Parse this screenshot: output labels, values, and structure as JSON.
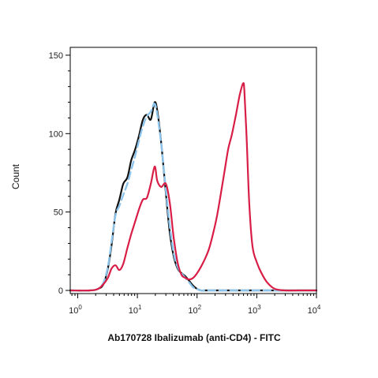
{
  "chart_data": {
    "type": "line",
    "xlabel": "Ab170728 Ibalizumab (anti-CD4) - FITC",
    "ylabel": "Count",
    "x_scale": "log",
    "xlim": [
      0.75,
      10000
    ],
    "ylim": [
      -2,
      155
    ],
    "y_ticks": [
      0,
      50,
      100,
      150
    ],
    "x_ticks": [
      {
        "value": 1,
        "base": "10",
        "exp": "0"
      },
      {
        "value": 10,
        "base": "10",
        "exp": "1"
      },
      {
        "value": 100,
        "base": "10",
        "exp": "2"
      },
      {
        "value": 1000,
        "base": "10",
        "exp": "3"
      },
      {
        "value": 10000,
        "base": "10",
        "exp": "4"
      }
    ],
    "grid": false,
    "series": [
      {
        "color": "#111111",
        "style": "solid",
        "x": [
          0.75,
          1.6,
          2.2,
          2.7,
          3.2,
          3.7,
          4.3,
          5.0,
          5.8,
          6.8,
          7.9,
          9.2,
          10.7,
          12.4,
          14.4,
          16.8,
          19.5,
          21.9,
          25.7,
          30.0,
          34.9,
          40.5,
          47.1,
          54.8,
          63.7,
          74.1,
          86.1,
          100,
          116,
          135,
          200,
          1000,
          10000
        ],
        "y": [
          0,
          0,
          1,
          4,
          14,
          29,
          49,
          58,
          68,
          72,
          83,
          90,
          99,
          109,
          112,
          109,
          120,
          113,
          90,
          62,
          37,
          22,
          14,
          11,
          9,
          6,
          3,
          1,
          0,
          0,
          0,
          0,
          0
        ]
      },
      {
        "color": "#8cc4ec",
        "style": "dashed",
        "x": [
          0.75,
          1.6,
          2.2,
          2.7,
          3.2,
          3.7,
          4.3,
          5.0,
          5.8,
          6.8,
          7.9,
          9.2,
          10.7,
          12.4,
          14.4,
          16.8,
          19.5,
          22.0,
          25.7,
          30.0,
          34.9,
          40.5,
          47.1,
          54.8,
          63.7,
          74.1,
          86.1,
          100,
          116,
          135,
          200,
          1000,
          10000
        ],
        "y": [
          0,
          0,
          1,
          5,
          15,
          31,
          48,
          54,
          61,
          68,
          77,
          86,
          96,
          105,
          111,
          114,
          119,
          110,
          90,
          64,
          41,
          24,
          15,
          11,
          8,
          5,
          2,
          1,
          0,
          0,
          0,
          0,
          0
        ]
      },
      {
        "color": "#d81e46",
        "style": "solid",
        "x": [
          0.75,
          1.6,
          2.2,
          2.7,
          3.2,
          3.7,
          4.3,
          5.0,
          5.8,
          6.8,
          7.9,
          9.2,
          10.7,
          12.4,
          14.4,
          16.8,
          19.5,
          21.5,
          25.0,
          30.0,
          34.9,
          40.5,
          47.1,
          54.8,
          63.7,
          74.1,
          86.1,
          100,
          116,
          135,
          157,
          182,
          212,
          246,
          286,
          332,
          386,
          448,
          521,
          590,
          620,
          680,
          750,
          850,
          1000,
          1200,
          1500,
          2000,
          3000,
          5000,
          10000
        ],
        "y": [
          0,
          0,
          1,
          4,
          8,
          14,
          16,
          13,
          17,
          27,
          36,
          44,
          52,
          58,
          59,
          68,
          79,
          70,
          66,
          68,
          56,
          34,
          18,
          10,
          8,
          7,
          8,
          11,
          15,
          20,
          26,
          35,
          46,
          60,
          75,
          90,
          100,
          112,
          125,
          132,
          127,
          95,
          55,
          28,
          18,
          11,
          5,
          1,
          0,
          0,
          0
        ]
      }
    ]
  }
}
